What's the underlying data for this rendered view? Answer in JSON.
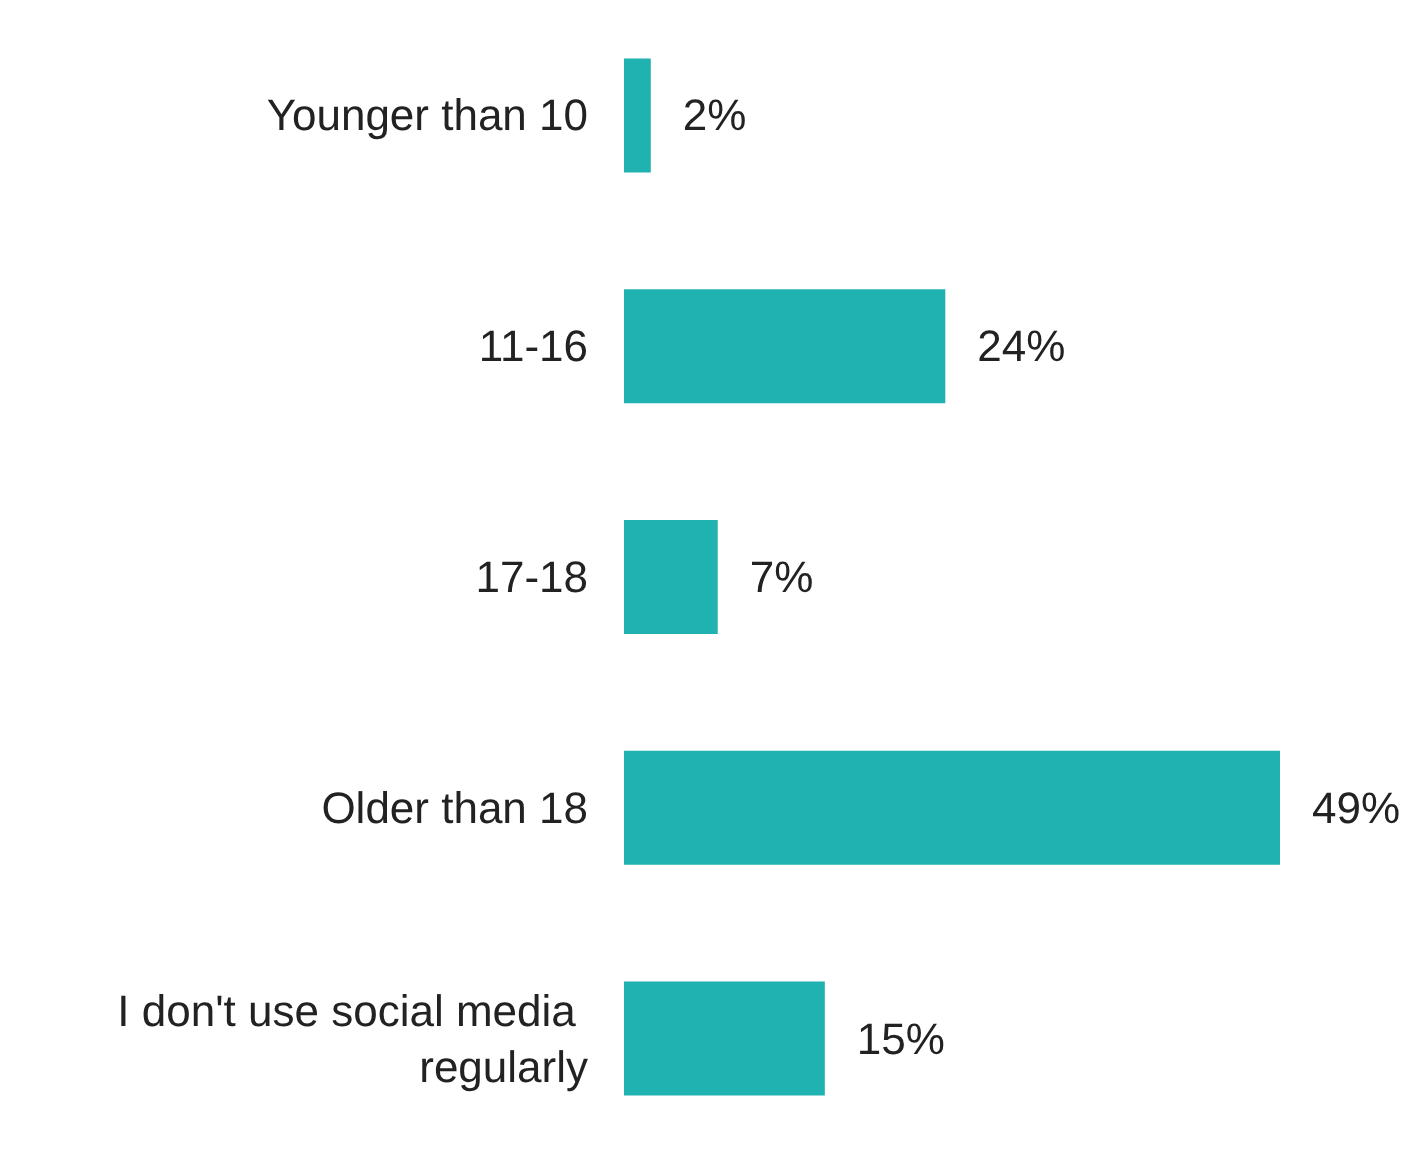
{
  "chart_data": {
    "type": "bar",
    "orientation": "horizontal",
    "categories": [
      "Younger than 10",
      "11-16",
      "17-18",
      "Older than 18",
      "I don't use social media regularly"
    ],
    "values": [
      2,
      24,
      7,
      49,
      15
    ],
    "value_labels": [
      "2%",
      "24%",
      "7%",
      "49%",
      "15%"
    ],
    "color": "#20b2b0"
  }
}
